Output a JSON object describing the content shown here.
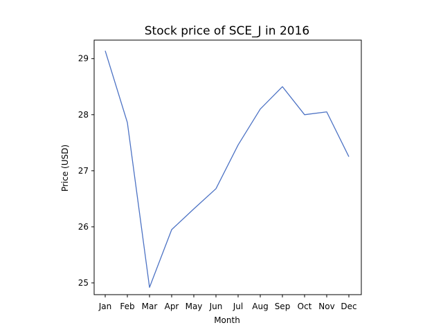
{
  "chart_data": {
    "type": "line",
    "title": "Stock price of SCE_J in 2016",
    "xlabel": "Month",
    "ylabel": "Price (USD)",
    "categories": [
      "Jan",
      "Feb",
      "Mar",
      "Apr",
      "May",
      "Jun",
      "Jul",
      "Aug",
      "Sep",
      "Oct",
      "Nov",
      "Dec"
    ],
    "series": [
      {
        "values": [
          29.14,
          27.86,
          24.92,
          25.95,
          26.32,
          26.68,
          27.46,
          28.1,
          28.5,
          28.0,
          28.05,
          27.25
        ],
        "color": "#4c72c4"
      }
    ],
    "yticks": [
      25,
      26,
      27,
      28,
      29
    ],
    "ylim": [
      24.79,
      29.33
    ],
    "grid": false,
    "legend": false
  }
}
